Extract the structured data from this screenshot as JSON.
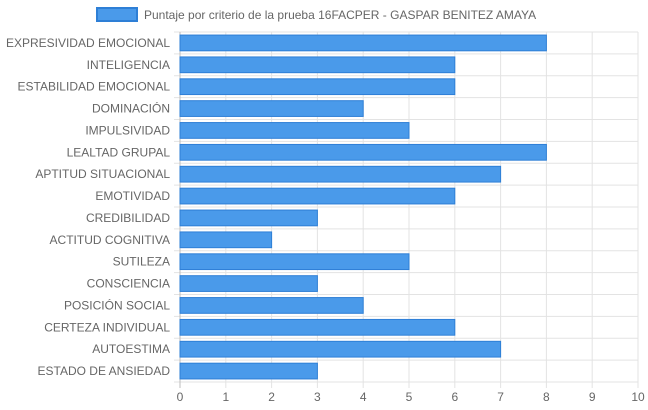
{
  "chart_data": {
    "type": "bar",
    "orientation": "horizontal",
    "title": "",
    "xlabel": "",
    "ylabel": "",
    "legend": {
      "position": "top",
      "entries": [
        "Puntaje por criterio de la prueba 16FACPER - GASPAR BENITEZ AMAYA"
      ]
    },
    "grid": true,
    "xlim": [
      0,
      10
    ],
    "xticks": [
      "0",
      "1",
      "2",
      "3",
      "4",
      "5",
      "6",
      "7",
      "8",
      "9",
      "10"
    ],
    "categories": [
      "EXPRESIVIDAD EMOCIONAL",
      "INTELIGENCIA",
      "ESTABILIDAD EMOCIONAL",
      "DOMINACIÓN",
      "IMPULSIVIDAD",
      "LEALTAD GRUPAL",
      "APTITUD SITUACIONAL",
      "EMOTIVIDAD",
      "CREDIBILIDAD",
      "ACTITUD COGNITIVA",
      "SUTILEZA",
      "CONSCIENCIA",
      "POSICIÓN SOCIAL",
      "CERTEZA INDIVIDUAL",
      "AUTOESTIMA",
      "ESTADO DE ANSIEDAD"
    ],
    "series": [
      {
        "name": "Puntaje por criterio de la prueba 16FACPER - GASPAR BENITEZ AMAYA",
        "values": [
          8,
          6,
          6,
          4,
          5,
          8,
          7,
          6,
          3,
          2,
          5,
          3,
          4,
          6,
          7,
          3
        ],
        "color": "#4a9aea",
        "border_color": "#2e7fd6"
      }
    ]
  }
}
